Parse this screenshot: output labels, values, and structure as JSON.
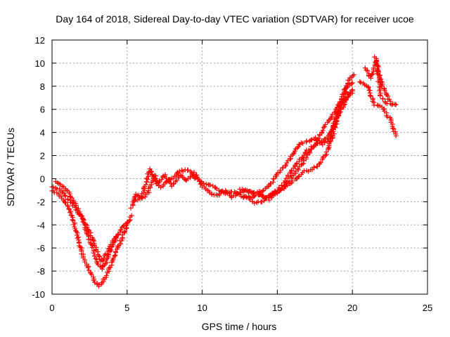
{
  "chart_data": {
    "type": "scatter",
    "title": "Day 164 of 2018, Sidereal Day-to-day VTEC variation (SDTVAR) for receiver ucoe",
    "xlabel": "GPS time / hours",
    "ylabel": "SDTVAR / TECUs",
    "xlim": [
      0,
      25
    ],
    "ylim": [
      -10,
      12
    ],
    "x_ticks": [
      "0",
      "5",
      "10",
      "15",
      "20",
      "25"
    ],
    "y_ticks": [
      "-10",
      "-8",
      "-6",
      "-4",
      "-2",
      "0",
      "2",
      "4",
      "6",
      "8",
      "10",
      "12"
    ],
    "grid": true,
    "marker": "+",
    "color": "#ff0000",
    "tracks": [
      [
        [
          0.0,
          -0.7
        ],
        [
          0.5,
          -0.9
        ],
        [
          1.0,
          -1.7
        ],
        [
          1.5,
          -2.4
        ],
        [
          2.0,
          -3.4
        ],
        [
          2.5,
          -4.6
        ],
        [
          3.0,
          -6.2
        ],
        [
          3.3,
          -7.2
        ],
        [
          3.6,
          -6.6
        ],
        [
          4.0,
          -5.6
        ],
        [
          4.5,
          -4.6
        ],
        [
          5.0,
          -3.8
        ]
      ],
      [
        [
          0.0,
          -1.0
        ],
        [
          0.4,
          -1.3
        ],
        [
          0.8,
          -1.9
        ],
        [
          1.2,
          -2.8
        ],
        [
          1.5,
          -4.0
        ],
        [
          1.8,
          -5.5
        ],
        [
          2.1,
          -6.9
        ],
        [
          2.5,
          -7.9
        ],
        [
          2.8,
          -8.8
        ],
        [
          3.1,
          -9.3
        ],
        [
          3.4,
          -8.9
        ],
        [
          3.8,
          -7.9
        ],
        [
          4.2,
          -6.6
        ],
        [
          4.6,
          -5.3
        ],
        [
          5.0,
          -4.1
        ],
        [
          5.3,
          -3.2
        ]
      ],
      [
        [
          0.3,
          -0.3
        ],
        [
          0.7,
          -0.6
        ],
        [
          1.1,
          -1.2
        ],
        [
          1.5,
          -2.1
        ],
        [
          1.9,
          -3.0
        ],
        [
          2.2,
          -4.2
        ],
        [
          2.6,
          -5.6
        ],
        [
          3.0,
          -7.2
        ],
        [
          3.3,
          -7.8
        ],
        [
          3.6,
          -7.2
        ],
        [
          3.9,
          -6.1
        ],
        [
          4.3,
          -5.0
        ]
      ],
      [
        [
          5.3,
          -2.5
        ],
        [
          5.6,
          -1.4
        ],
        [
          6.0,
          -1.7
        ],
        [
          6.4,
          -1.2
        ],
        [
          6.8,
          0.3
        ],
        [
          7.2,
          -0.8
        ],
        [
          7.6,
          -0.3
        ],
        [
          8.0,
          0.0
        ],
        [
          8.5,
          0.6
        ],
        [
          9.0,
          0.8
        ],
        [
          9.5,
          0.1
        ],
        [
          10.0,
          -0.3
        ],
        [
          10.5,
          -0.5
        ],
        [
          11.0,
          -0.9
        ],
        [
          11.5,
          -1.3
        ],
        [
          12.0,
          -1.1
        ],
        [
          12.5,
          -1.4
        ],
        [
          13.0,
          -1.7
        ],
        [
          13.5,
          -2.1
        ],
        [
          14.0,
          -2.0
        ],
        [
          14.5,
          -1.5
        ],
        [
          15.0,
          -1.2
        ],
        [
          15.5,
          -0.6
        ],
        [
          16.0,
          0.2
        ],
        [
          16.5,
          1.0
        ],
        [
          17.0,
          2.0
        ],
        [
          17.5,
          3.0
        ],
        [
          18.0,
          4.1
        ],
        [
          18.5,
          5.2
        ],
        [
          19.0,
          6.2
        ],
        [
          19.5,
          7.0
        ],
        [
          20.0,
          7.7
        ]
      ],
      [
        [
          5.5,
          -2.0
        ],
        [
          6.0,
          -1.5
        ],
        [
          6.5,
          0.8
        ],
        [
          7.0,
          -0.5
        ],
        [
          7.5,
          0.3
        ],
        [
          8.0,
          -0.6
        ],
        [
          8.5,
          0.3
        ],
        [
          9.0,
          -0.2
        ],
        [
          9.5,
          0.5
        ],
        [
          10.0,
          -0.7
        ],
        [
          10.5,
          -1.2
        ],
        [
          11.0,
          -1.5
        ],
        [
          11.5,
          -1.0
        ],
        [
          12.0,
          -1.6
        ],
        [
          12.5,
          -1.2
        ],
        [
          13.0,
          -1.0
        ],
        [
          13.5,
          -1.3
        ],
        [
          14.0,
          -1.5
        ],
        [
          14.5,
          -1.8
        ],
        [
          15.0,
          -1.0
        ],
        [
          15.5,
          -0.3
        ],
        [
          16.0,
          0.8
        ],
        [
          16.5,
          1.6
        ],
        [
          17.0,
          2.4
        ],
        [
          17.5,
          2.9
        ],
        [
          18.0,
          3.2
        ],
        [
          18.5,
          3.8
        ],
        [
          19.0,
          5.3
        ],
        [
          19.5,
          6.6
        ],
        [
          20.0,
          7.6
        ]
      ],
      [
        [
          12.5,
          -0.9
        ],
        [
          13.0,
          -1.1
        ],
        [
          13.5,
          -1.2
        ],
        [
          14.0,
          -1.1
        ],
        [
          14.5,
          -0.6
        ],
        [
          15.0,
          0.4
        ],
        [
          15.5,
          1.1
        ],
        [
          16.0,
          2.0
        ],
        [
          16.5,
          3.0
        ],
        [
          17.0,
          3.2
        ],
        [
          17.5,
          3.5
        ],
        [
          18.0,
          3.0
        ],
        [
          18.5,
          3.5
        ],
        [
          19.0,
          5.8
        ],
        [
          19.5,
          7.8
        ],
        [
          20.0,
          8.3
        ]
      ],
      [
        [
          12.8,
          -1.6
        ],
        [
          13.3,
          -1.6
        ],
        [
          13.8,
          -1.4
        ],
        [
          14.3,
          -1.6
        ],
        [
          14.8,
          -1.1
        ],
        [
          15.3,
          -0.9
        ],
        [
          15.8,
          -0.5
        ],
        [
          16.3,
          0.1
        ],
        [
          16.8,
          0.6
        ],
        [
          17.3,
          0.8
        ],
        [
          17.8,
          1.2
        ],
        [
          18.3,
          2.3
        ],
        [
          18.8,
          4.2
        ],
        [
          19.3,
          6.5
        ],
        [
          19.8,
          8.6
        ],
        [
          20.1,
          9.0
        ]
      ],
      [
        [
          20.5,
          8.4
        ],
        [
          21.0,
          8.0
        ],
        [
          21.5,
          6.4
        ],
        [
          22.0,
          6.2
        ],
        [
          22.3,
          5.5
        ],
        [
          22.6,
          5.0
        ],
        [
          22.9,
          3.7
        ]
      ],
      [
        [
          21.5,
          10.5
        ],
        [
          21.8,
          9.0
        ],
        [
          22.0,
          8.0
        ],
        [
          22.3,
          7.2
        ],
        [
          22.6,
          6.4
        ],
        [
          22.9,
          6.4
        ]
      ],
      [
        [
          20.9,
          9.6
        ],
        [
          21.2,
          8.7
        ],
        [
          21.6,
          10.3
        ],
        [
          21.9,
          7.1
        ],
        [
          22.3,
          6.5
        ]
      ]
    ]
  }
}
